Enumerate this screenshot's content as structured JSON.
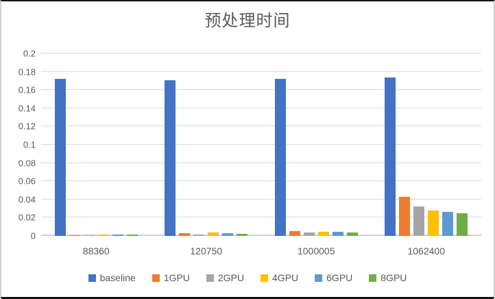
{
  "chart_data": {
    "type": "bar",
    "title": "预处理时间",
    "categories": [
      "88360",
      "120750",
      "1000005",
      "1062400"
    ],
    "series": [
      {
        "name": "baseline",
        "color": "#4472C4",
        "values": [
          0.172,
          0.171,
          0.172,
          0.174
        ]
      },
      {
        "name": "1GPU",
        "color": "#ED7D31",
        "values": [
          0.0005,
          0.0028,
          0.0052,
          0.043
        ]
      },
      {
        "name": "2GPU",
        "color": "#A5A5A5",
        "values": [
          0.0005,
          0.0018,
          0.0037,
          0.032
        ]
      },
      {
        "name": "4GPU",
        "color": "#FFC000",
        "values": [
          0.0013,
          0.0038,
          0.0045,
          0.028
        ]
      },
      {
        "name": "6GPU",
        "color": "#5B9BD5",
        "values": [
          0.0013,
          0.0028,
          0.0047,
          0.0265
        ]
      },
      {
        "name": "8GPU",
        "color": "#70AD47",
        "values": [
          0.0013,
          0.0026,
          0.004,
          0.0245
        ]
      }
    ],
    "ylim": [
      0,
      0.2
    ],
    "ytick_step": 0.02,
    "ytick_labels": [
      "0",
      "0.02",
      "0.04",
      "0.06",
      "0.08",
      "0.1",
      "0.12",
      "0.14",
      "0.16",
      "0.18",
      "0.2"
    ],
    "grid": "horizontal",
    "legend_position": "bottom",
    "xlabel": "",
    "ylabel": ""
  },
  "colors": {
    "text": "#595959",
    "gridline": "#D9D9D9",
    "axis_line": "#D0D0D0",
    "frame_border": "#111111"
  }
}
